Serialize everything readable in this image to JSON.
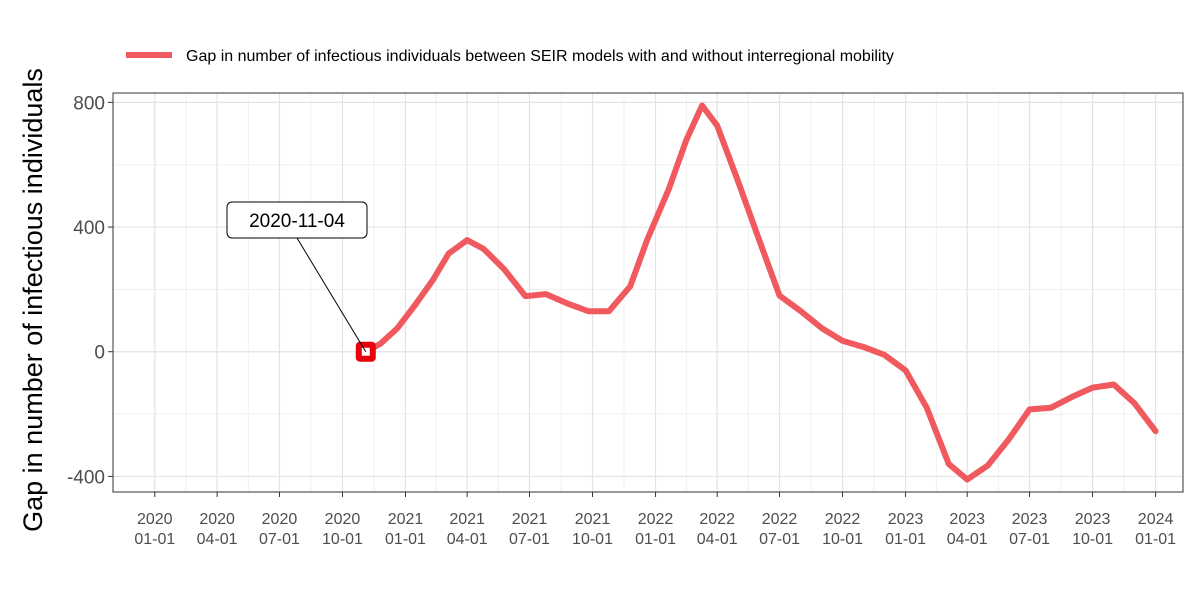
{
  "chart_data": {
    "type": "line",
    "title": "",
    "xlabel": "",
    "ylabel": "Gap in number of infectious individuals",
    "ylim": [
      -450,
      830
    ],
    "yticks": [
      {
        "value": -400,
        "label": "-400"
      },
      {
        "value": 0,
        "label": "0"
      },
      {
        "value": 400,
        "label": "400"
      },
      {
        "value": 800,
        "label": "800"
      }
    ],
    "xticks": [
      {
        "date": "2020-01-01",
        "year": "2020",
        "md": "01-01"
      },
      {
        "date": "2020-04-01",
        "year": "2020",
        "md": "04-01"
      },
      {
        "date": "2020-07-01",
        "year": "2020",
        "md": "07-01"
      },
      {
        "date": "2020-10-01",
        "year": "2020",
        "md": "10-01"
      },
      {
        "date": "2021-01-01",
        "year": "2021",
        "md": "01-01"
      },
      {
        "date": "2021-04-01",
        "year": "2021",
        "md": "04-01"
      },
      {
        "date": "2021-07-01",
        "year": "2021",
        "md": "07-01"
      },
      {
        "date": "2021-10-01",
        "year": "2021",
        "md": "10-01"
      },
      {
        "date": "2022-01-01",
        "year": "2022",
        "md": "01-01"
      },
      {
        "date": "2022-04-01",
        "year": "2022",
        "md": "04-01"
      },
      {
        "date": "2022-07-01",
        "year": "2022",
        "md": "07-01"
      },
      {
        "date": "2022-10-01",
        "year": "2022",
        "md": "10-01"
      },
      {
        "date": "2023-01-01",
        "year": "2023",
        "md": "01-01"
      },
      {
        "date": "2023-04-01",
        "year": "2023",
        "md": "04-01"
      },
      {
        "date": "2023-07-01",
        "year": "2023",
        "md": "07-01"
      },
      {
        "date": "2023-10-01",
        "year": "2023",
        "md": "10-01"
      },
      {
        "date": "2024-01-01",
        "year": "2024",
        "md": "01-01"
      }
    ],
    "series": [
      {
        "name": "Gap in number of infectious individuals between SEIR models with and without interregional mobility",
        "color": "#f05a5e",
        "points": [
          {
            "date": "2020-11-04",
            "value": 0
          },
          {
            "date": "2020-11-25",
            "value": 25
          },
          {
            "date": "2020-12-20",
            "value": 75
          },
          {
            "date": "2021-01-15",
            "value": 150
          },
          {
            "date": "2021-02-10",
            "value": 230
          },
          {
            "date": "2021-03-05",
            "value": 315
          },
          {
            "date": "2021-04-01",
            "value": 358
          },
          {
            "date": "2021-04-25",
            "value": 330
          },
          {
            "date": "2021-05-25",
            "value": 265
          },
          {
            "date": "2021-06-25",
            "value": 178
          },
          {
            "date": "2021-07-25",
            "value": 185
          },
          {
            "date": "2021-08-25",
            "value": 155
          },
          {
            "date": "2021-09-25",
            "value": 130
          },
          {
            "date": "2021-10-25",
            "value": 130
          },
          {
            "date": "2021-11-25",
            "value": 210
          },
          {
            "date": "2021-12-20",
            "value": 360
          },
          {
            "date": "2022-01-20",
            "value": 520
          },
          {
            "date": "2022-02-15",
            "value": 680
          },
          {
            "date": "2022-03-10",
            "value": 790
          },
          {
            "date": "2022-04-01",
            "value": 725
          },
          {
            "date": "2022-05-01",
            "value": 550
          },
          {
            "date": "2022-06-01",
            "value": 360
          },
          {
            "date": "2022-07-01",
            "value": 180
          },
          {
            "date": "2022-08-01",
            "value": 130
          },
          {
            "date": "2022-09-01",
            "value": 75
          },
          {
            "date": "2022-10-01",
            "value": 35
          },
          {
            "date": "2022-11-01",
            "value": 15
          },
          {
            "date": "2022-12-01",
            "value": -10
          },
          {
            "date": "2023-01-01",
            "value": -60
          },
          {
            "date": "2023-02-01",
            "value": -180
          },
          {
            "date": "2023-03-05",
            "value": -360
          },
          {
            "date": "2023-04-01",
            "value": -410
          },
          {
            "date": "2023-05-01",
            "value": -365
          },
          {
            "date": "2023-06-01",
            "value": -280
          },
          {
            "date": "2023-07-01",
            "value": -185
          },
          {
            "date": "2023-08-01",
            "value": -180
          },
          {
            "date": "2023-09-01",
            "value": -145
          },
          {
            "date": "2023-10-01",
            "value": -115
          },
          {
            "date": "2023-11-01",
            "value": -105
          },
          {
            "date": "2023-12-01",
            "value": -165
          },
          {
            "date": "2024-01-01",
            "value": -255
          }
        ]
      }
    ],
    "highlight": {
      "date": "2020-11-04",
      "value": 0,
      "color": "#e8000b"
    },
    "annotation": {
      "label": "2020-11-04",
      "date": "2020-11-04",
      "value": 0
    },
    "legend": {
      "position": "top",
      "label": "Gap in number of infectious individuals between SEIR models with and without interregional mobility"
    },
    "grid": true
  }
}
